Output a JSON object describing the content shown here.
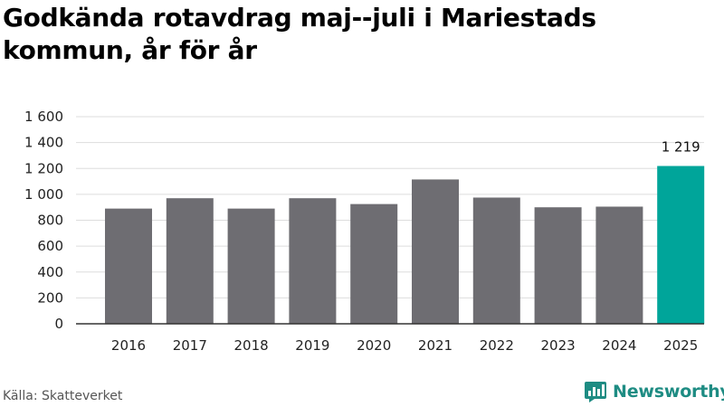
{
  "chart_data": {
    "type": "bar",
    "title": "Godkända rotavdrag maj--juli i Mariestads kommun, år för år",
    "categories": [
      "2016",
      "2017",
      "2018",
      "2019",
      "2020",
      "2021",
      "2022",
      "2023",
      "2024",
      "2025"
    ],
    "values": [
      890,
      970,
      890,
      970,
      925,
      1115,
      975,
      900,
      905,
      1219
    ],
    "ylim": [
      0,
      1600
    ],
    "yticks": [
      0,
      200,
      400,
      600,
      800,
      1000,
      1200,
      1400,
      1600
    ],
    "ytick_labels": [
      "0",
      "200",
      "400",
      "600",
      "800",
      "1 000",
      "1 200",
      "1 400",
      "1 600"
    ],
    "data_labels": [
      {
        "category": "2025",
        "text": "1 219"
      }
    ],
    "grid": true,
    "xlabel": "",
    "ylabel": "",
    "colors": {
      "bar": "#6e6d72",
      "highlight": "#00a59a",
      "grid": "#dddddd",
      "axis": "#333333"
    },
    "highlight_category": "2025"
  },
  "footer": {
    "source": "Källa: Skatteverket",
    "brand": "Newsworthy",
    "brand_icon": "newsworthy-logo-icon"
  }
}
